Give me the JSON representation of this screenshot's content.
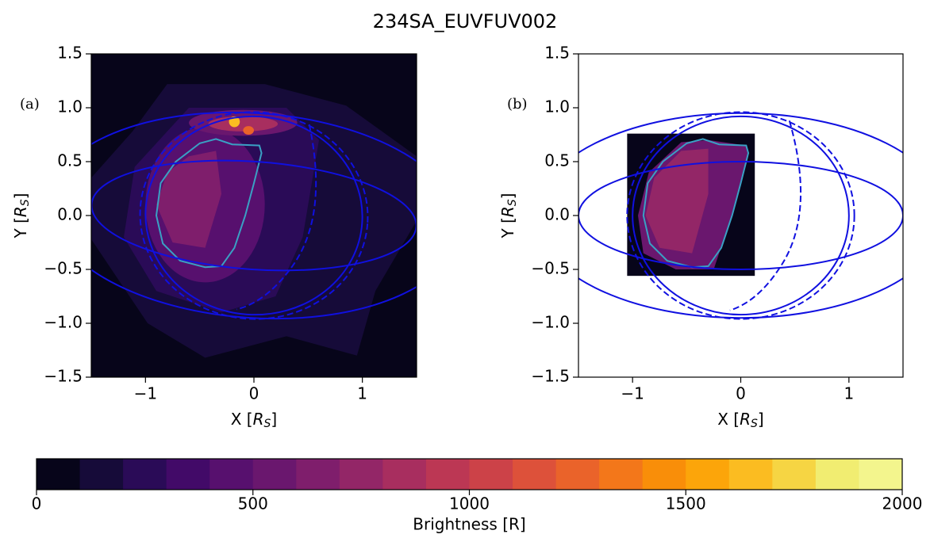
{
  "title": "234SA_EUVFUV002",
  "chart_data": [
    {
      "type": "contour",
      "panel_label": "(a)",
      "xlabel": "X [RS]",
      "ylabel": "Y [RS]",
      "xlim": [
        -1.5,
        1.5
      ],
      "ylim": [
        -1.5,
        1.5
      ],
      "xticks": [
        {
          "value": -1,
          "label": "−1"
        },
        0,
        1
      ],
      "yticks": [
        {
          "value": -1.5,
          "label": "−1.5"
        },
        {
          "value": -1,
          "label": "−1.0"
        },
        {
          "value": -0.5,
          "label": "−0.5"
        },
        {
          "value": 0,
          "label": "0.0"
        },
        0.5,
        {
          "value": 1,
          "label": "1.0"
        },
        1.5
      ]
    },
    {
      "type": "contour",
      "panel_label": "(b)",
      "xlabel": "X [RS]",
      "ylabel": "Y [RS]",
      "xlim": [
        -1.5,
        1.5
      ],
      "ylim": [
        -1.5,
        1.5
      ],
      "xticks": [
        {
          "value": -1,
          "label": "−1"
        },
        0,
        1
      ],
      "yticks": [
        {
          "value": -1.5,
          "label": "−1.5"
        },
        {
          "value": -1,
          "label": "−1.0"
        },
        {
          "value": -0.5,
          "label": "−0.5"
        },
        {
          "value": 0,
          "label": "0.0"
        },
        0.5,
        {
          "value": 1,
          "label": "1.0"
        },
        1.5
      ]
    }
  ],
  "colorbar": {
    "label": "Brightness [R]",
    "lim": [
      0,
      2000
    ],
    "levels": [
      0,
      100,
      200,
      300,
      400,
      500,
      600,
      700,
      800,
      900,
      1000,
      1100,
      1200,
      1300,
      1400,
      1500,
      1600,
      1700,
      1800,
      1900,
      2000
    ],
    "colors": [
      "#07051a",
      "#160b39",
      "#2a0b57",
      "#420a68",
      "#57106e",
      "#6a176e",
      "#7f1e6c",
      "#932667",
      "#a82e5f",
      "#bc3754",
      "#cc4248",
      "#dd513a",
      "#ea632a",
      "#f3771a",
      "#f98e09",
      "#fca50a",
      "#fbbc21",
      "#f6d543",
      "#f1ed71",
      "#f3f58d"
    ],
    "ticks": [
      0,
      500,
      1000,
      1500,
      2000
    ]
  }
}
